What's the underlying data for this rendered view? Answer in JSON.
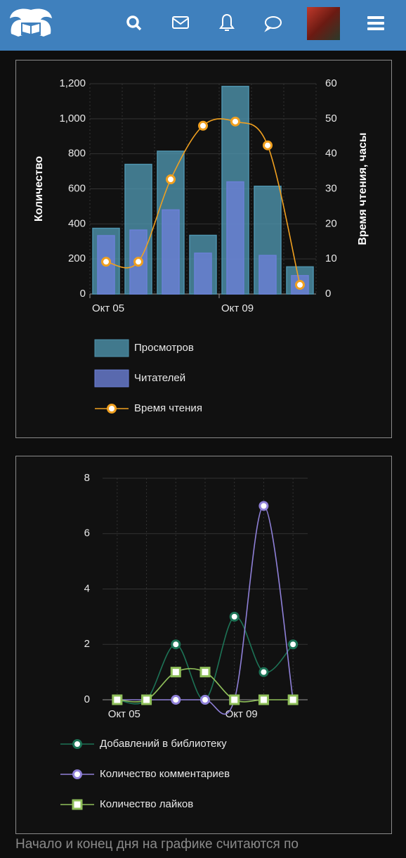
{
  "chart_data": [
    {
      "type": "bar",
      "categories": [
        "Окт 05",
        null,
        null,
        null,
        "Окт 09",
        null,
        null
      ],
      "y_label": "Количество",
      "y2_label": "Время чтения, часы",
      "ylim": [
        0,
        1200
      ],
      "yticks": [
        0,
        200,
        400,
        600,
        800,
        {
          "value": 1000,
          "label": "1,000"
        },
        {
          "value": 1200,
          "label": "1,200"
        }
      ],
      "y2lim": [
        0,
        60
      ],
      "y2ticks": [
        0,
        10,
        20,
        30,
        40,
        50,
        60
      ],
      "grid": true,
      "series": [
        {
          "name": "Просмотров",
          "type": "bar",
          "color": "#4e93ad",
          "values": [
            375,
            740,
            815,
            335,
            1185,
            615,
            155
          ]
        },
        {
          "name": "Читателей",
          "type": "bar",
          "color": "#6b80d6",
          "values": [
            333,
            365,
            480,
            233,
            640,
            220,
            105
          ]
        },
        {
          "name": "Время чтения",
          "type": "line",
          "axis": "y2",
          "marker": "circle",
          "color": "#f0a020",
          "values": [
            9.2,
            9.2,
            32.7,
            48,
            49.2,
            42.4,
            2.6
          ]
        }
      ]
    },
    {
      "type": "line",
      "categories": [
        "Окт 05",
        null,
        null,
        null,
        "Окт 09",
        null,
        null
      ],
      "ylim": [
        0,
        8
      ],
      "yticks": [
        0,
        2,
        4,
        6,
        8
      ],
      "grid": true,
      "series": [
        {
          "name": "Добавлений в библиотеку",
          "type": "line",
          "marker": "circle",
          "color": "#1d7356",
          "values": [
            0,
            0,
            2,
            0,
            3,
            1,
            2
          ]
        },
        {
          "name": "Количество комментариев",
          "type": "line",
          "marker": "circle",
          "color": "#8f80d8",
          "values": [
            0,
            0,
            0,
            0,
            0,
            7,
            0
          ]
        },
        {
          "name": "Количество лайков",
          "type": "line",
          "marker": "square",
          "color": "#8fbf5a",
          "values": [
            0,
            0,
            1,
            1,
            0,
            0,
            0
          ]
        }
      ]
    }
  ],
  "footer": {
    "text": "Начало и конец дня на графике считаются по"
  }
}
